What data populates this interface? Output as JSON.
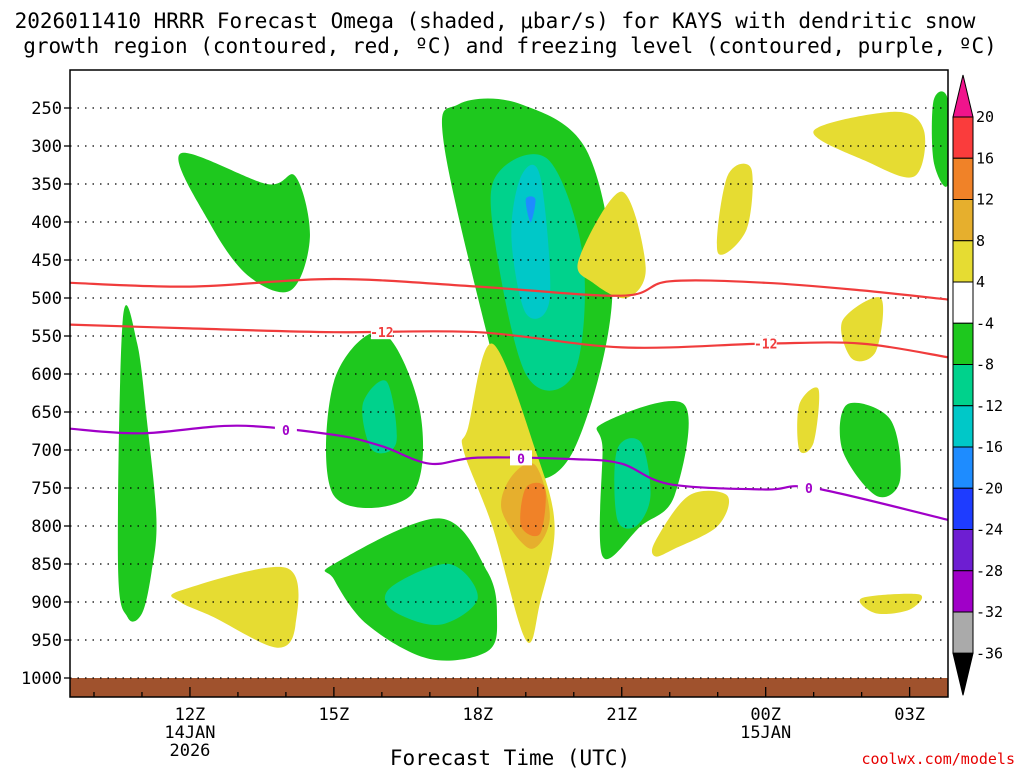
{
  "chart_data": {
    "type": "heatmap",
    "title_lines": [
      "2026011410 HRRR Forecast Omega (shaded, μbar/s) for KAYS with dendritic snow",
      "growth region (contoured, red, ºC) and freezing level (contoured, purple, ºC)"
    ],
    "xlabel": "Forecast Time (UTC)",
    "credit": "coolwx.com/models",
    "x_range_hours": [
      9.5,
      27.8
    ],
    "x_ticks": [
      {
        "hour": 12,
        "label": "12Z",
        "sub": [
          "14JAN",
          "2026"
        ]
      },
      {
        "hour": 15,
        "label": "15Z",
        "sub": []
      },
      {
        "hour": 18,
        "label": "18Z",
        "sub": []
      },
      {
        "hour": 21,
        "label": "21Z",
        "sub": []
      },
      {
        "hour": 24,
        "label": "00Z",
        "sub": [
          "15JAN"
        ]
      },
      {
        "hour": 27,
        "label": "03Z",
        "sub": []
      }
    ],
    "y_ticks_hpa": [
      250,
      300,
      350,
      400,
      450,
      500,
      550,
      600,
      650,
      700,
      750,
      800,
      850,
      900,
      950,
      1000
    ],
    "y_range_hpa": [
      200,
      1025
    ],
    "colorbar": {
      "labels": [
        "20",
        "16",
        "12",
        "8",
        "4",
        "-4",
        "-8",
        "-12",
        "-16",
        "-20",
        "-24",
        "-28",
        "-32",
        "-36"
      ],
      "colors": [
        "#fa3c3c",
        "#f08228",
        "#e6af2d",
        "#e6dc32",
        "#ffffff",
        "#1ec81e",
        "#00d28c",
        "#00c8c8",
        "#1e8cff",
        "#1e3cff",
        "#6e1ed2",
        "#a000c8",
        "#aaaaaa"
      ],
      "top_color": "#f0148c",
      "bottom_color": "#000000"
    },
    "series": [
      {
        "name": "DGZ upper (-18 C)",
        "color": "#f03c3c",
        "label": "",
        "x": [
          9.5,
          12,
          15,
          18,
          21,
          22,
          24,
          26,
          27.8
        ],
        "p": [
          480,
          485,
          475,
          485,
          497,
          478,
          480,
          490,
          502
        ]
      },
      {
        "name": "DGZ lower (-12 C)",
        "color": "#f03c3c",
        "label": "-12",
        "x": [
          9.5,
          12,
          15,
          18,
          21,
          24,
          26,
          27.8
        ],
        "p": [
          535,
          540,
          545,
          545,
          565,
          560,
          560,
          578
        ]
      },
      {
        "name": "Freezing level (0 C)",
        "color": "#a000c8",
        "label": "0",
        "x": [
          9.5,
          11,
          13,
          15,
          16,
          17,
          18,
          20,
          21,
          22,
          24,
          25,
          27.8
        ],
        "p": [
          672,
          678,
          668,
          680,
          695,
          718,
          710,
          712,
          718,
          745,
          752,
          750,
          792
        ]
      }
    ],
    "omega_regions": [
      {
        "value": -8,
        "x": [
          10.6,
          10.9,
          11.1,
          11.3,
          11.2,
          11.0,
          10.7,
          10.5
        ],
        "p": [
          528,
          560,
          660,
          790,
          860,
          915,
          920,
          850
        ]
      },
      {
        "value": -8,
        "x": [
          11.8,
          13.6,
          14.2,
          14.5,
          14.1,
          13.2,
          12.4
        ],
        "p": [
          310,
          350,
          340,
          420,
          490,
          470,
          400
        ]
      },
      {
        "value": -8,
        "x": [
          18.9,
          20.3,
          20.8,
          20.0,
          19.0,
          18.4,
          17.3,
          17.6
        ],
        "p": [
          245,
          310,
          500,
          700,
          730,
          600,
          300,
          245
        ]
      },
      {
        "value": -12,
        "x": [
          18.5,
          19.5,
          20.2,
          20.0,
          19.0,
          18.3
        ],
        "p": [
          330,
          320,
          450,
          600,
          600,
          400
        ]
      },
      {
        "value": -16,
        "x": [
          18.9,
          19.3,
          19.5,
          19.0,
          18.7
        ],
        "p": [
          340,
          340,
          500,
          520,
          420
        ]
      },
      {
        "value": -20,
        "x": [
          19.0,
          19.2,
          19.1
        ],
        "p": [
          370,
          370,
          400
        ]
      },
      {
        "value": -8,
        "x": [
          15.0,
          16.0,
          16.8,
          16.6,
          15.0
        ],
        "p": [
          610,
          545,
          650,
          760,
          760
        ]
      },
      {
        "value": -12,
        "x": [
          15.6,
          16.1,
          16.3,
          15.8
        ],
        "p": [
          640,
          610,
          690,
          700
        ]
      },
      {
        "value": -8,
        "x": [
          15.0,
          17.2,
          18.2,
          18.4,
          18.2,
          17.0,
          15.7,
          15.0
        ],
        "p": [
          850,
          790,
          860,
          920,
          965,
          975,
          930,
          870
        ]
      },
      {
        "value": -12,
        "x": [
          16.2,
          17.4,
          18.0,
          17.2,
          16.2
        ],
        "p": [
          880,
          850,
          895,
          930,
          910
        ]
      },
      {
        "value": -8,
        "x": [
          20.6,
          22.3,
          22.1,
          21.4,
          20.6,
          20.6
        ],
        "p": [
          665,
          640,
          760,
          800,
          840,
          700
        ]
      },
      {
        "value": -12,
        "x": [
          20.9,
          21.4,
          21.6,
          21.3,
          20.9
        ],
        "p": [
          700,
          690,
          760,
          800,
          790
        ]
      },
      {
        "value": -8,
        "x": [
          25.7,
          26.6,
          26.8,
          26.3,
          25.6
        ],
        "p": [
          640,
          660,
          740,
          760,
          700
        ]
      },
      {
        "value": -8,
        "x": [
          27.5,
          27.8,
          27.8,
          27.5
        ],
        "p": [
          240,
          240,
          350,
          320
        ]
      },
      {
        "value": 4,
        "x": [
          17.8,
          18.3,
          19.2,
          19.6,
          19.3,
          19.0,
          18.3,
          17.7
        ],
        "p": [
          670,
          560,
          700,
          800,
          900,
          950,
          800,
          700
        ]
      },
      {
        "value": 8,
        "x": [
          18.7,
          19.2,
          19.5,
          19.1,
          18.5
        ],
        "p": [
          735,
          720,
          790,
          830,
          780
        ]
      },
      {
        "value": 12,
        "x": [
          19.0,
          19.4,
          19.3,
          18.9
        ],
        "p": [
          750,
          750,
          810,
          800
        ]
      },
      {
        "value": 4,
        "x": [
          20.1,
          21.0,
          21.5,
          21.1,
          20.4
        ],
        "p": [
          450,
          360,
          460,
          500,
          480
        ]
      },
      {
        "value": 4,
        "x": [
          23.2,
          23.7,
          23.6,
          23.0
        ],
        "p": [
          340,
          330,
          410,
          440
        ]
      },
      {
        "value": 4,
        "x": [
          11.8,
          14.0,
          14.2,
          13.8,
          12.5,
          11.8
        ],
        "p": [
          885,
          855,
          930,
          960,
          920,
          900
        ]
      },
      {
        "value": 4,
        "x": [
          21.7,
          22.4,
          23.2,
          23.0,
          22.1,
          21.7
        ],
        "p": [
          820,
          760,
          760,
          800,
          830,
          840
        ]
      },
      {
        "value": 4,
        "x": [
          25.0,
          26.7,
          27.3,
          27.1,
          26.1
        ],
        "p": [
          280,
          255,
          280,
          340,
          320
        ]
      },
      {
        "value": 4,
        "x": [
          25.6,
          26.4,
          26.3,
          25.8
        ],
        "p": [
          530,
          500,
          570,
          580
        ]
      },
      {
        "value": 4,
        "x": [
          24.7,
          25.1,
          25.0,
          24.7
        ],
        "p": [
          640,
          620,
          690,
          700
        ]
      },
      {
        "value": 4,
        "x": [
          26.0,
          27.2,
          27.0,
          26.3
        ],
        "p": [
          895,
          890,
          910,
          915
        ]
      }
    ]
  }
}
